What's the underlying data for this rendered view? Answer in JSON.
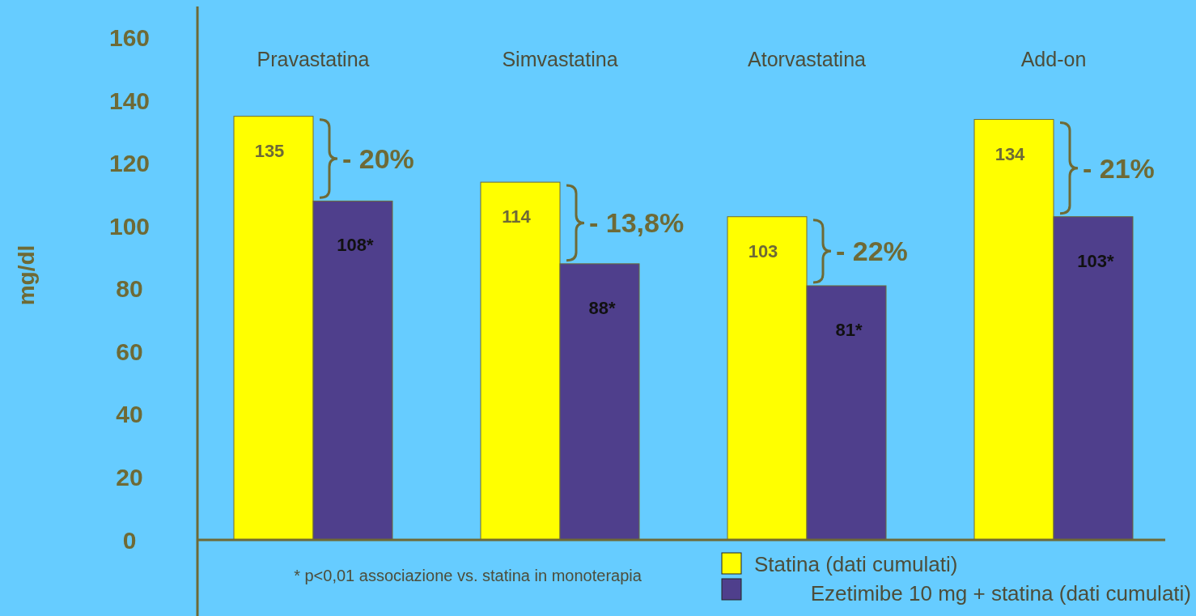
{
  "chart_data": {
    "type": "bar",
    "ylabel": "mg/dl",
    "categories": [
      "Pravastatina",
      "Simvastatina",
      "Atorvastatina",
      "Add-on"
    ],
    "series": [
      {
        "name": "Statina (dati cumulati)",
        "color": "#ffff00",
        "values": [
          135,
          114,
          103,
          134
        ],
        "value_labels": [
          "135",
          "114",
          "103",
          "134"
        ]
      },
      {
        "name": "Ezetimibe 10 mg + statina (dati cumulati)",
        "color": "#4f3f8c",
        "values": [
          108,
          88,
          81,
          103
        ],
        "value_labels": [
          "108*",
          "88*",
          "81*",
          "103*"
        ]
      }
    ],
    "ylim": [
      0,
      170
    ],
    "yticks": [
      0,
      20,
      40,
      60,
      80,
      100,
      120,
      140,
      160
    ],
    "grid": false,
    "legend": "bottom right",
    "annotations": [
      "- 20%",
      "- 13,8%",
      "- 22%",
      "- 21%",
      "* p<0,01 associazione vs. statina in monoterapia"
    ]
  }
}
